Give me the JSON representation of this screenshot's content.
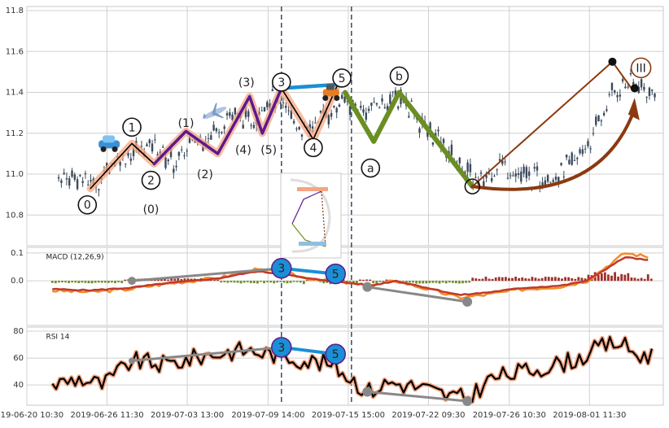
{
  "chart_data": {
    "type": "line",
    "x_ticks": [
      "2019-06-20 10:30",
      "2019-06-26 11:30",
      "2019-07-03 13:00",
      "2019-07-09 14:00",
      "2019-07-15 15:00",
      "2019-07-22 09:30",
      "2019-07-26 10:30",
      "2019-08-01 11:30"
    ],
    "x_range": [
      0,
      1000
    ],
    "x_tick_positions": [
      0,
      126,
      252,
      379,
      505,
      631,
      758,
      884
    ],
    "vertical_markers": [
      400,
      510
    ],
    "price_panel": {
      "ylim": [
        10.65,
        11.82
      ],
      "y_ticks": [
        "10.8",
        "11.0",
        "11.2",
        "11.4",
        "11.6",
        "11.8"
      ],
      "y_tick_values": [
        10.8,
        11.0,
        11.2,
        11.4,
        11.6,
        11.8
      ],
      "candles_base": [
        [
          50,
          11.0
        ],
        [
          80,
          10.98
        ],
        [
          110,
          10.95
        ],
        [
          140,
          11.08
        ],
        [
          170,
          11.1
        ],
        [
          200,
          11.15
        ],
        [
          230,
          11.05
        ],
        [
          260,
          11.15
        ],
        [
          290,
          11.2
        ],
        [
          320,
          11.3
        ],
        [
          350,
          11.25
        ],
        [
          380,
          11.38
        ],
        [
          410,
          11.3
        ],
        [
          440,
          11.2
        ],
        [
          470,
          11.3
        ],
        [
          500,
          11.35
        ],
        [
          530,
          11.3
        ],
        [
          560,
          11.35
        ],
        [
          590,
          11.38
        ],
        [
          620,
          11.25
        ],
        [
          650,
          11.15
        ],
        [
          680,
          11.05
        ],
        [
          710,
          10.95
        ],
        [
          740,
          11.05
        ],
        [
          770,
          11.0
        ],
        [
          800,
          10.98
        ],
        [
          830,
          11.0
        ],
        [
          860,
          11.05
        ],
        [
          890,
          11.2
        ],
        [
          920,
          11.4
        ],
        [
          950,
          11.45
        ],
        [
          980,
          11.4
        ]
      ],
      "series": [
        {
          "color": "#f4a582",
          "values": [
            [
              100,
              10.93
            ],
            [
              165,
              11.15
            ],
            [
              200,
              11.05
            ],
            [
              250,
              11.21
            ],
            [
              300,
              11.1
            ],
            [
              350,
              11.38
            ],
            [
              370,
              11.2
            ],
            [
              400,
              11.42
            ],
            [
              450,
              11.17
            ],
            [
              490,
              11.45
            ]
          ]
        },
        {
          "color": "#000000",
          "values": [
            [
              100,
              10.93
            ],
            [
              165,
              11.15
            ],
            [
              200,
              11.05
            ],
            [
              250,
              11.21
            ],
            [
              300,
              11.1
            ],
            [
              350,
              11.38
            ],
            [
              370,
              11.2
            ],
            [
              400,
              11.42
            ],
            [
              450,
              11.17
            ],
            [
              490,
              11.45
            ]
          ]
        },
        {
          "color": "#5b1a8e",
          "values": [
            [
              200,
              11.05
            ],
            [
              250,
              11.21
            ],
            [
              300,
              11.1
            ],
            [
              350,
              11.38
            ],
            [
              370,
              11.2
            ],
            [
              400,
              11.42
            ]
          ]
        },
        {
          "color": "#1a8fd6",
          "values": [
            [
              400,
              11.42
            ],
            [
              495,
              11.44
            ]
          ]
        },
        {
          "color": "#6b8e23",
          "values": [
            [
              500,
              11.4
            ],
            [
              545,
              11.16
            ],
            [
              585,
              11.4
            ],
            [
              700,
              10.94
            ]
          ]
        },
        {
          "color": "#8b3a0f",
          "values": [
            [
              700,
              10.94
            ],
            [
              920,
              11.55
            ],
            [
              950,
              11.42
            ]
          ]
        }
      ],
      "wave_labels": [
        "0",
        "1",
        "2",
        "3",
        "4",
        "5",
        "(0)",
        "(1)",
        "(2)",
        "(3)",
        "(4)",
        "(5)",
        "a",
        "b",
        "III"
      ]
    },
    "macd_panel": {
      "label": "MACD (12,26,9)",
      "ylim": [
        -0.16,
        0.12
      ],
      "y_ticks": [
        "0.1",
        "0.0"
      ],
      "y_tick_values": [
        0.1,
        0.0
      ],
      "markers": [
        "3",
        "5"
      ]
    },
    "rsi_panel": {
      "label": "RSI 14",
      "ylim": [
        25,
        83
      ],
      "y_ticks": [
        "80",
        "60",
        "40"
      ],
      "y_tick_values": [
        80,
        60,
        40
      ],
      "markers": [
        "3",
        "5"
      ]
    },
    "colors": {
      "grid": "#d0d0d0",
      "frame": "#c8c8c8",
      "dashed": "#3d5673",
      "candle": "#3b4a5c",
      "hist_up": "#a1302a",
      "hist_down": "#6b8e23",
      "macd": "#f28c28",
      "signal": "#c0392b",
      "rsi_glow": "#f4a582",
      "rsi_line": "#000000",
      "divergence": "#888888",
      "marker_fill": "#1a8fd6"
    }
  }
}
